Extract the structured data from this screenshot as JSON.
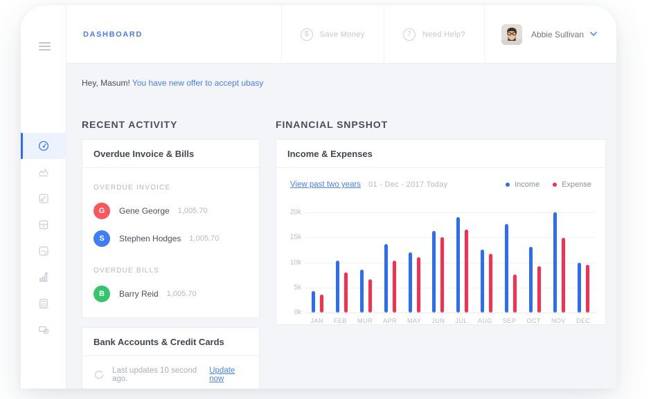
{
  "header": {
    "title": "DASHBOARD",
    "save_money": "Save Money",
    "need_help": "Need Help?",
    "user_name": "Abbie Sullivan"
  },
  "greeting": {
    "prefix": "Hey, Masum!",
    "link": "You have new offer to accept ubasy"
  },
  "sidebar": {
    "active_index": 0,
    "icons": [
      "gauge-icon",
      "area-chart-icon",
      "box-target-icon",
      "wallet-icon",
      "note-icon",
      "growth-icon",
      "calculator-icon",
      "cards-coin-icon"
    ]
  },
  "recent": {
    "section_title": "RECENT ACTIVITY",
    "card_title": "Overdue Invoice & Bills",
    "groups": [
      {
        "label": "OVERDUE INVOICE",
        "items": [
          {
            "initial": "G",
            "name": "Gene George",
            "amount": "1,005.70",
            "color": "#f8575f"
          },
          {
            "initial": "S",
            "name": "Stephen Hodges",
            "amount": "1,005.70",
            "color": "#3f7cf7"
          }
        ]
      },
      {
        "label": "OVERDUE BILLS",
        "items": [
          {
            "initial": "B",
            "name": "Barry Reid",
            "amount": "1,005.70",
            "color": "#35c56d"
          }
        ]
      }
    ],
    "bank": {
      "title": "Bank Accounts & Credit Cards",
      "status": "Last updates 10 second ago.",
      "link": "Update now"
    }
  },
  "financial": {
    "section_title": "FINANCIAL SNPSHOT",
    "card_title": "Income & Expenses",
    "link": "View past two years",
    "date_range": "01 - Dec - 2017 Today",
    "legend": [
      {
        "label": "Income",
        "color": "#2d6cf6"
      },
      {
        "label": "Expense",
        "color": "#f8304f"
      }
    ]
  },
  "chart_data": {
    "type": "bar",
    "title": "Income & Expenses",
    "categories": [
      "JAN",
      "FEB",
      "MUR",
      "APR",
      "MAY",
      "JUN",
      "JUL",
      "AUG",
      "SEP",
      "OCT",
      "NOV",
      "DEC"
    ],
    "series": [
      {
        "name": "Income",
        "color": "#2d6cf6",
        "values": [
          4300,
          10300,
          8600,
          13600,
          12000,
          16300,
          19000,
          12500,
          17700,
          13100,
          20000,
          9900
        ]
      },
      {
        "name": "Expense",
        "color": "#f8304f",
        "values": [
          3600,
          8000,
          6600,
          10300,
          11000,
          15000,
          16600,
          11700,
          7600,
          9300,
          14900,
          9500
        ]
      }
    ],
    "xlabel": "",
    "ylabel": "",
    "ylim": [
      0,
      20000
    ],
    "yticks": [
      "20k",
      "15k",
      "10k",
      "5k",
      "0k"
    ],
    "grid": true,
    "legend_position": "top-right"
  }
}
